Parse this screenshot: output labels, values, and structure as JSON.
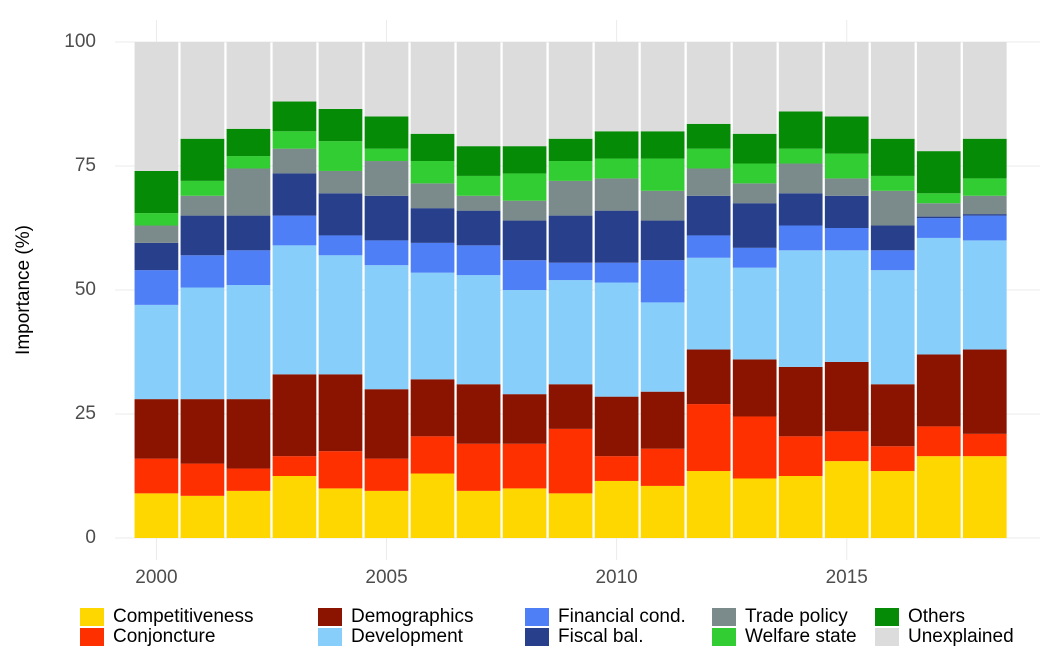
{
  "chart_data": {
    "type": "stacked-bar",
    "y_label": "Importance (%)",
    "x": [
      2000,
      2001,
      2002,
      2003,
      2004,
      2005,
      2006,
      2007,
      2008,
      2009,
      2010,
      2011,
      2012,
      2013,
      2014,
      2015,
      2016,
      2017,
      2018
    ],
    "xlim": [
      1999.1,
      2019.2
    ],
    "xticks": [
      2000,
      2005,
      2010,
      2015
    ],
    "ylim": [
      0,
      100
    ],
    "yticks": [
      0,
      25,
      50,
      75,
      100
    ],
    "grid": true,
    "legend": "bottom",
    "series": [
      {
        "name": "Competitiveness",
        "color": "#ffd700",
        "values": [
          9,
          8.5,
          9.5,
          12.5,
          10,
          9.5,
          13,
          9.5,
          10,
          9,
          11.5,
          10.5,
          13.5,
          12,
          12.5,
          15.5,
          13.5,
          16.5,
          16.5
        ]
      },
      {
        "name": "Conjoncture",
        "color": "#ff3000",
        "values": [
          7,
          6.5,
          4.5,
          4,
          7.5,
          6.5,
          7.5,
          9.5,
          9,
          13,
          5,
          7.5,
          13.5,
          12.5,
          8,
          6,
          5,
          6,
          4.5
        ]
      },
      {
        "name": "Demographics",
        "color": "#8b1400",
        "values": [
          12,
          13,
          14,
          16.5,
          15.5,
          14,
          11.5,
          12,
          10,
          9,
          12,
          11.5,
          11,
          11.5,
          14,
          14,
          12.5,
          14.5,
          17
        ]
      },
      {
        "name": "Development",
        "color": "#87cefa",
        "values": [
          19,
          22.5,
          23,
          26,
          24,
          25,
          21.5,
          22,
          21,
          21,
          23,
          18,
          18.5,
          18.5,
          23.5,
          22.5,
          23,
          23.5,
          22
        ]
      },
      {
        "name": "Financial cond.",
        "color": "#4f7ff7",
        "values": [
          7,
          6.5,
          7,
          6,
          4,
          5,
          6,
          6,
          6,
          3.5,
          4,
          8.5,
          4.5,
          4,
          5,
          4.5,
          4,
          4,
          5
        ]
      },
      {
        "name": "Fiscal bal.",
        "color": "#28408c",
        "values": [
          5.5,
          8,
          7,
          8.5,
          8.5,
          9,
          7,
          7,
          8,
          9.5,
          10.5,
          8,
          8,
          9,
          6.5,
          6.5,
          5,
          0.3,
          0.3
        ]
      },
      {
        "name": "Trade policy",
        "color": "#7b8b8b",
        "values": [
          3.5,
          4,
          9.5,
          5,
          4.5,
          7,
          5,
          3,
          4,
          7,
          6.5,
          6,
          5.5,
          4,
          6,
          3.5,
          7,
          2.7,
          3.7
        ]
      },
      {
        "name": "Welfare state",
        "color": "#32cd32",
        "values": [
          2.5,
          3,
          2.5,
          3.5,
          6,
          2.5,
          4.5,
          4,
          5.5,
          4,
          4,
          6.5,
          4,
          4,
          3,
          5,
          3,
          2,
          3.5
        ]
      },
      {
        "name": "Others",
        "color": "#068b06",
        "values": [
          8.5,
          8.5,
          5.5,
          6,
          6.5,
          6.5,
          5.5,
          6,
          5.5,
          4.5,
          5.5,
          5.5,
          5,
          6,
          7.5,
          7.5,
          7.5,
          8.5,
          8
        ]
      },
      {
        "name": "Unexplained",
        "color": "#dcdcdc",
        "values": [
          26,
          19.5,
          17.5,
          12,
          13.5,
          15,
          18.5,
          21,
          21,
          19.5,
          18,
          18,
          16.5,
          18.5,
          14,
          15,
          19.5,
          22,
          19.5
        ]
      }
    ]
  }
}
